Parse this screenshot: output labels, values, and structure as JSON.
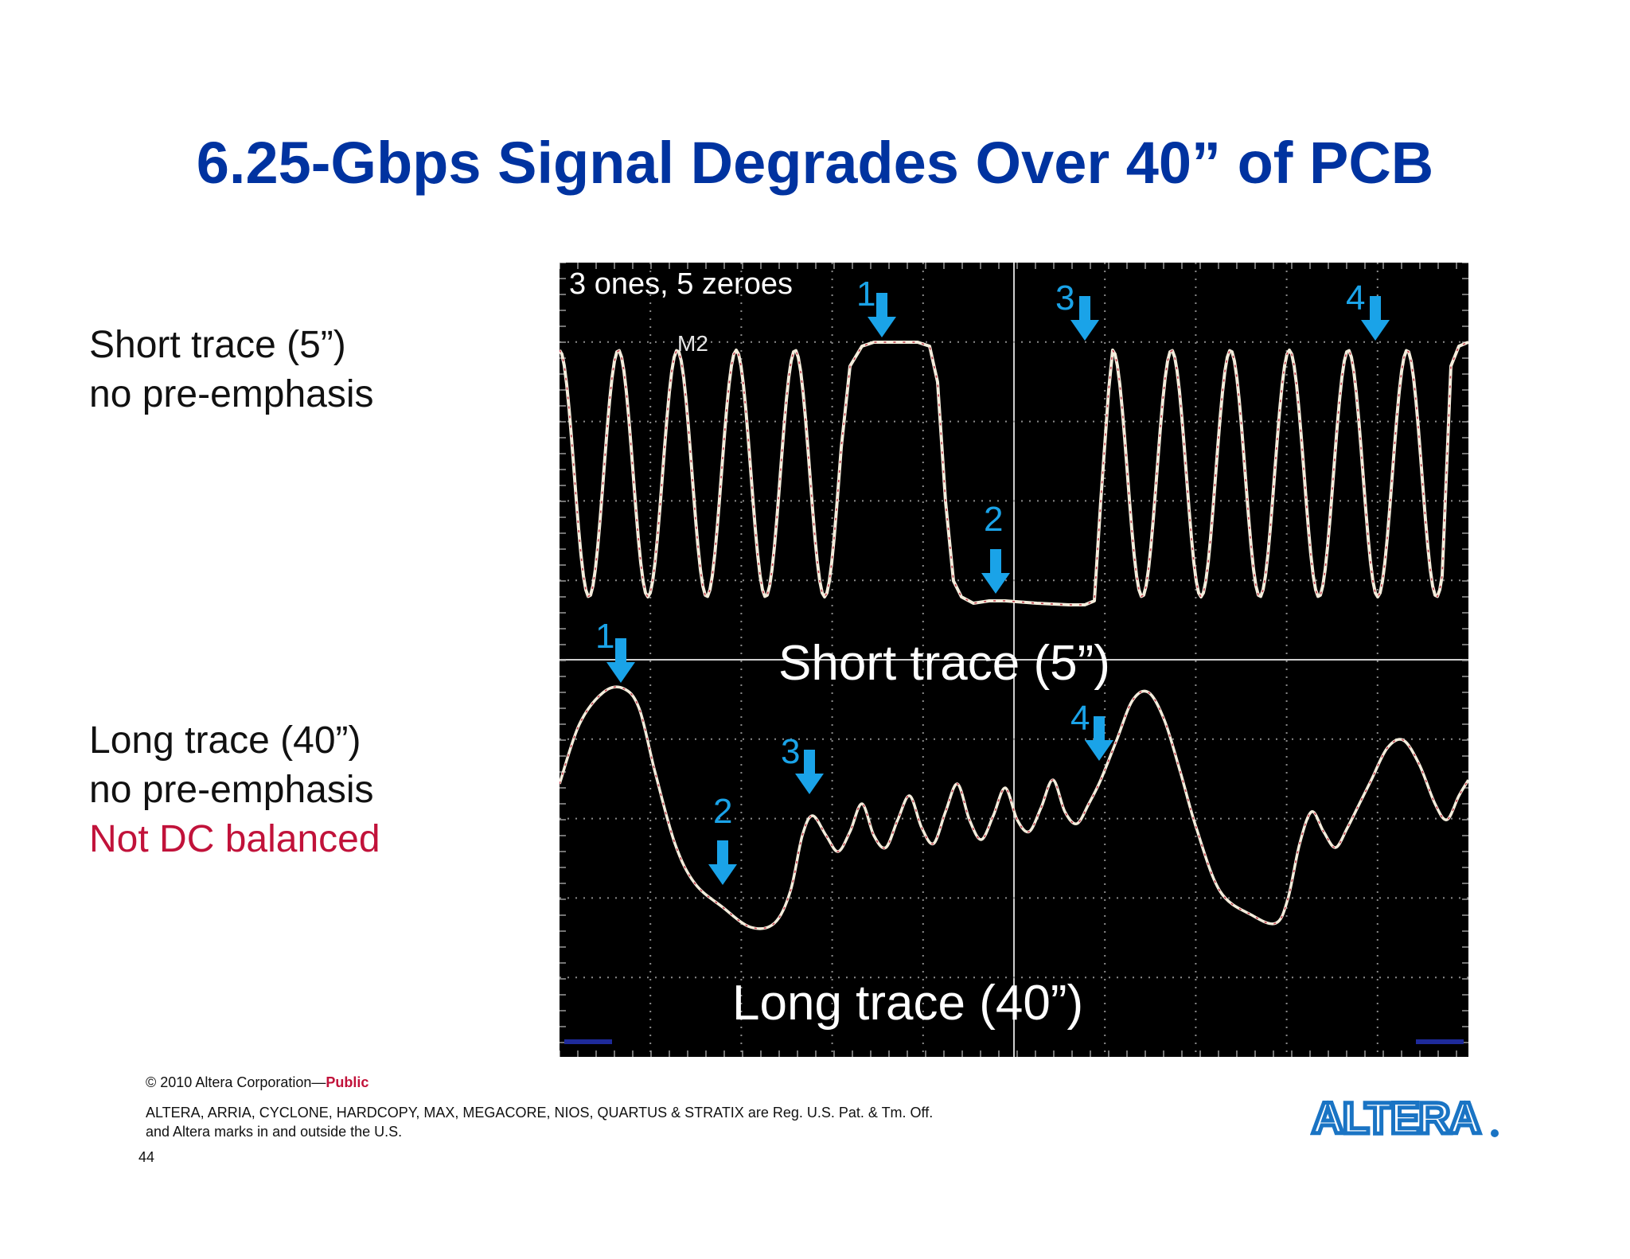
{
  "slide": {
    "title": "6.25-Gbps Signal Degrades Over 40” of PCB",
    "short_label": {
      "line1": "Short trace (5”)",
      "line2": "no pre-emphasis"
    },
    "long_label": {
      "line1": "Long trace (40”)",
      "line2": "no pre-emphasis",
      "line3": "Not DC balanced"
    },
    "page_number": "44"
  },
  "scope": {
    "annotation": "3 ones, 5 zeroes",
    "marker_label": "M2",
    "short_caption": "Short  trace (5”)",
    "long_caption": "Long  trace (40”)",
    "markers_short": [
      "1",
      "2",
      "3",
      "4"
    ],
    "markers_long": [
      "1",
      "2",
      "3",
      "4"
    ],
    "colors": {
      "background": "#000000",
      "trace": "#f4eddc",
      "marker": "#1aa3e8"
    }
  },
  "footer": {
    "copyright": "© 2010 Altera Corporation—",
    "public": "Public",
    "legal_line1": "ALTERA, ARRIA, CYCLONE, HARDCOPY, MAX, MEGACORE, NIOS, QUARTUS & STRATIX are Reg. U.S. Pat. & Tm. Off.",
    "legal_line2": "and Altera marks in and outside the U.S.",
    "logo_text": "ALTERA."
  },
  "colors": {
    "title": "#0033a0",
    "accent_red": "#c1123a",
    "logo": "#1a74c4"
  }
}
